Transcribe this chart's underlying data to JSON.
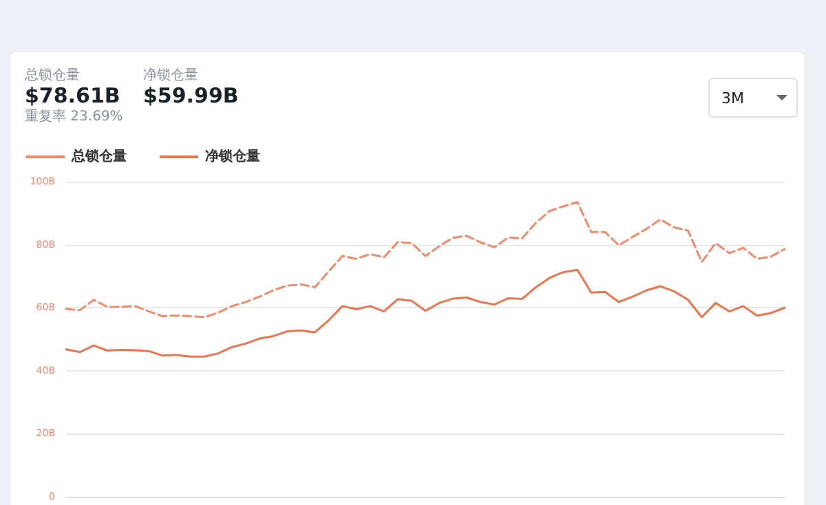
{
  "chart_data": {
    "type": "line",
    "annotations": [
      "总锁仓量",
      "$78.61B",
      "净锁仓量",
      "$59.99B",
      "重复率 23.69%",
      "3M"
    ],
    "categories": [
      null,
      null,
      null,
      null,
      null,
      null,
      null,
      null,
      null,
      null,
      null,
      null,
      null,
      null,
      null,
      null,
      null,
      null,
      null,
      null,
      null,
      null,
      null,
      null,
      null,
      null,
      null,
      null,
      null,
      null,
      null,
      null,
      null,
      null,
      null,
      null,
      null,
      null,
      null,
      null,
      null,
      null,
      null,
      null,
      null,
      null,
      null,
      null,
      null,
      null,
      null,
      null,
      null
    ],
    "series": [
      {
        "name": "总锁仓量",
        "color": "#ef8a6a",
        "line_style": "dashed",
        "values": [
          59.6,
          59.2,
          62.5,
          60.2,
          60.3,
          60.5,
          58.8,
          57.3,
          57.5,
          57.3,
          57,
          58.4,
          60.5,
          61.8,
          63.5,
          65.5,
          67,
          67.4,
          66.5,
          71.5,
          76.4,
          75.5,
          77,
          76,
          80.8,
          80.5,
          76.4,
          79.5,
          82.2,
          82.8,
          80.7,
          79.2,
          82.3,
          82,
          87,
          90.7,
          92.2,
          93.5,
          84,
          84,
          79.8,
          82.5,
          85,
          88,
          85.5,
          84.5,
          74.5,
          80.5,
          77.3,
          79,
          75.5,
          76.2,
          78.61
        ]
      },
      {
        "name": "净锁仓量",
        "color": "#e8764e",
        "line_style": "solid",
        "values": [
          46.8,
          45.9,
          48,
          46.4,
          46.6,
          46.5,
          46.2,
          44.8,
          45,
          44.5,
          44.5,
          45.5,
          47.5,
          48.6,
          50.2,
          51,
          52.5,
          52.8,
          52.2,
          56,
          60.5,
          59.5,
          60.5,
          58.8,
          62.7,
          62.2,
          59,
          61.5,
          62.9,
          63.2,
          61.8,
          61,
          63,
          62.8,
          66.5,
          69.5,
          71.3,
          72,
          64.8,
          65,
          61.8,
          63.5,
          65.5,
          66.8,
          65.2,
          62.5,
          57,
          61.5,
          58.8,
          60.5,
          57.5,
          58.3,
          59.99
        ]
      }
    ],
    "ylim": [
      0,
      100
    ],
    "yticks": [
      0,
      {
        "value": 20,
        "label": "20B"
      },
      {
        "value": 40,
        "label": "40B"
      },
      {
        "value": 60,
        "label": "60B"
      },
      {
        "value": 80,
        "label": "80B"
      },
      {
        "value": 100,
        "label": "100B"
      }
    ],
    "grid": "y",
    "legend": "top left",
    "marker": "none",
    "tick_labels": "y"
  }
}
